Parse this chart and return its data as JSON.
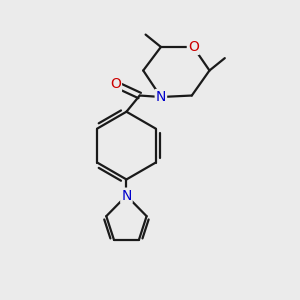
{
  "background_color": "#ebebeb",
  "atom_color_N": "#0000cc",
  "atom_color_O": "#cc0000",
  "bond_color": "#1a1a1a",
  "bond_width": 1.6,
  "figsize": [
    3.0,
    3.0
  ],
  "dpi": 100,
  "xlim": [
    0,
    10
  ],
  "ylim": [
    0,
    10
  ]
}
